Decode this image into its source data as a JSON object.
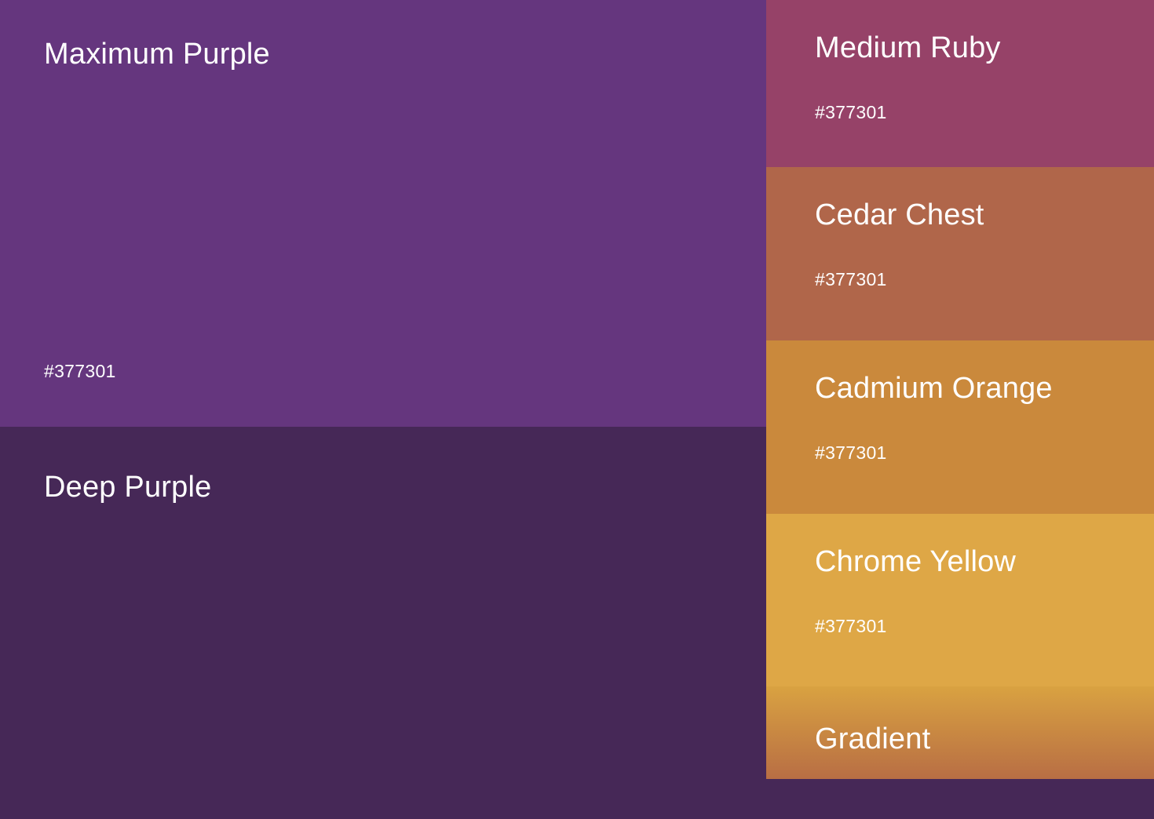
{
  "swatches": {
    "maximum_purple": {
      "name": "Maximum Purple",
      "hex": "#377301",
      "color": "#65367e"
    },
    "deep_purple": {
      "name": "Deep Purple",
      "color": "#462857"
    },
    "medium_ruby": {
      "name": "Medium Ruby",
      "hex": "#377301",
      "color": "#964268"
    },
    "cedar_chest": {
      "name": "Cedar Chest",
      "hex": "#377301",
      "color": "#b0664a"
    },
    "cadmium_orange": {
      "name": "Cadmium Orange",
      "hex": "#377301",
      "color": "#ca893c"
    },
    "chrome_yellow": {
      "name": "Chrome Yellow",
      "hex": "#377301",
      "color": "#dea746"
    },
    "gradient": {
      "name": "Gradient",
      "color_top": "#d9a241",
      "color_bottom": "#b86e44"
    }
  }
}
